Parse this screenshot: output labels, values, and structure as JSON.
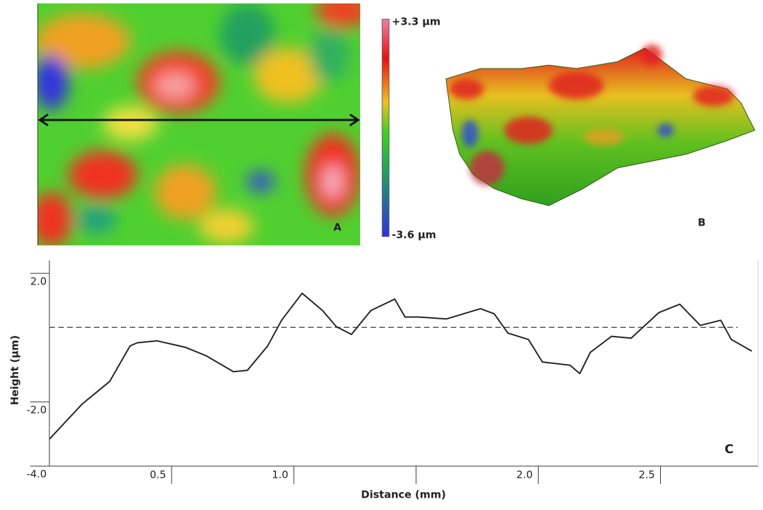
{
  "panel_a": {
    "label": "A"
  },
  "panel_b": {
    "label": "B"
  },
  "colorbar": {
    "ticks": [
      {
        "value": 3.3,
        "label": "+3.3 µm"
      },
      {
        "value": -3.6,
        "label": "-3.6 µm"
      }
    ]
  },
  "chart_data": {
    "type": "line",
    "panel_label": "C",
    "xlabel": "Distance (mm)",
    "ylabel": "Height (µm)",
    "x": [
      0,
      0.135,
      0.247,
      0.33,
      0.36,
      0.44,
      0.556,
      0.64,
      0.753,
      0.81,
      0.893,
      0.95,
      1.034,
      1.118,
      1.174,
      1.236,
      1.315,
      1.413,
      1.455,
      1.511,
      1.624,
      1.764,
      1.82,
      1.876,
      1.96,
      2.017,
      2.13,
      2.17,
      2.213,
      2.3,
      2.38,
      2.494,
      2.579,
      2.663,
      2.747,
      2.79,
      2.874
    ],
    "values": [
      -3.16,
      -2.06,
      -1.36,
      -0.26,
      -0.16,
      -0.1,
      -0.3,
      -0.56,
      -1.06,
      -1.02,
      -0.26,
      0.54,
      1.38,
      0.84,
      0.34,
      0.1,
      0.84,
      1.2,
      0.64,
      0.64,
      0.58,
      0.9,
      0.74,
      0.14,
      -0.06,
      -0.76,
      -0.86,
      -1.12,
      -0.46,
      0.04,
      -0.02,
      0.78,
      1.04,
      0.38,
      0.54,
      -0.06,
      -0.42
    ],
    "color": "#222222",
    "reference_line": 0.32,
    "xlim": [
      0,
      2.9
    ],
    "ylim": [
      -4,
      2.4
    ],
    "xticks": [
      {
        "value": 0.5,
        "label": "0.5"
      },
      {
        "value": 1,
        "label": "1.0"
      },
      {
        "value": 1.5,
        "label": null
      },
      {
        "value": 2,
        "label": "2.0"
      },
      {
        "value": 2.5,
        "label": "2.5"
      }
    ],
    "yticks": [
      {
        "value": -4,
        "label": "-4.0"
      },
      {
        "value": -2,
        "label": "-2.0"
      },
      {
        "value": 2,
        "label": "2.0"
      }
    ]
  }
}
